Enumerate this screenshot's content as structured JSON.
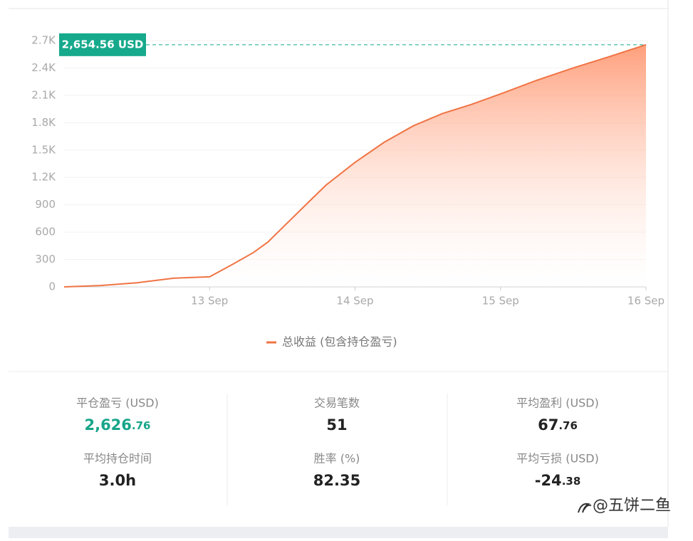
{
  "chart_data": {
    "type": "area",
    "x": [
      12,
      12.25,
      12.5,
      12.75,
      13,
      13.15,
      13.3,
      13.4,
      13.55,
      13.7,
      13.8,
      14,
      14.2,
      14.4,
      14.6,
      14.8,
      15,
      15.25,
      15.5,
      15.75,
      16
    ],
    "series": [
      {
        "name": "总收益 (包含持仓盈亏)",
        "color": "#f07444",
        "values": [
          0,
          15,
          45,
          95,
          110,
          240,
          375,
          490,
          725,
          960,
          1115,
          1365,
          1585,
          1765,
          1900,
          2000,
          2115,
          2265,
          2400,
          2525,
          2654.56
        ]
      }
    ],
    "xlim": [
      12,
      16
    ],
    "xticks": [
      {
        "value": 13,
        "label": "13 Sep"
      },
      {
        "value": 14,
        "label": "14 Sep"
      },
      {
        "value": 15,
        "label": "15 Sep"
      },
      {
        "value": 16,
        "label": "16 Sep"
      }
    ],
    "ylim": [
      0,
      2700
    ],
    "yticks": [
      0,
      300,
      600,
      900,
      {
        "value": 1200,
        "label": "1.2K"
      },
      {
        "value": 1500,
        "label": "1.5K"
      },
      {
        "value": 1800,
        "label": "1.8K"
      },
      {
        "value": 2100,
        "label": "2.1K"
      },
      {
        "value": 2400,
        "label": "2.4K"
      },
      {
        "value": 2700,
        "label": "2.7K"
      }
    ],
    "grid": true,
    "annotation": {
      "value": 2654.56,
      "label": "2,654.56 USD",
      "color": "#16a98c"
    }
  },
  "stats": [
    {
      "label": "平仓盈亏 (USD)",
      "value": "2,626",
      "decimal": ".76"
    },
    {
      "label": "交易笔数",
      "value": "51"
    },
    {
      "label": "平均盈利 (USD)",
      "value": "67",
      "decimal": ".76"
    },
    {
      "label": "平均持仓时间",
      "value": "3.0h"
    },
    {
      "label": "胜率 (%)",
      "value": "82.35"
    },
    {
      "label": "平均亏损 (USD)",
      "value": "-24",
      "decimal": ".38"
    }
  ],
  "watermark": "@五饼二鱼"
}
